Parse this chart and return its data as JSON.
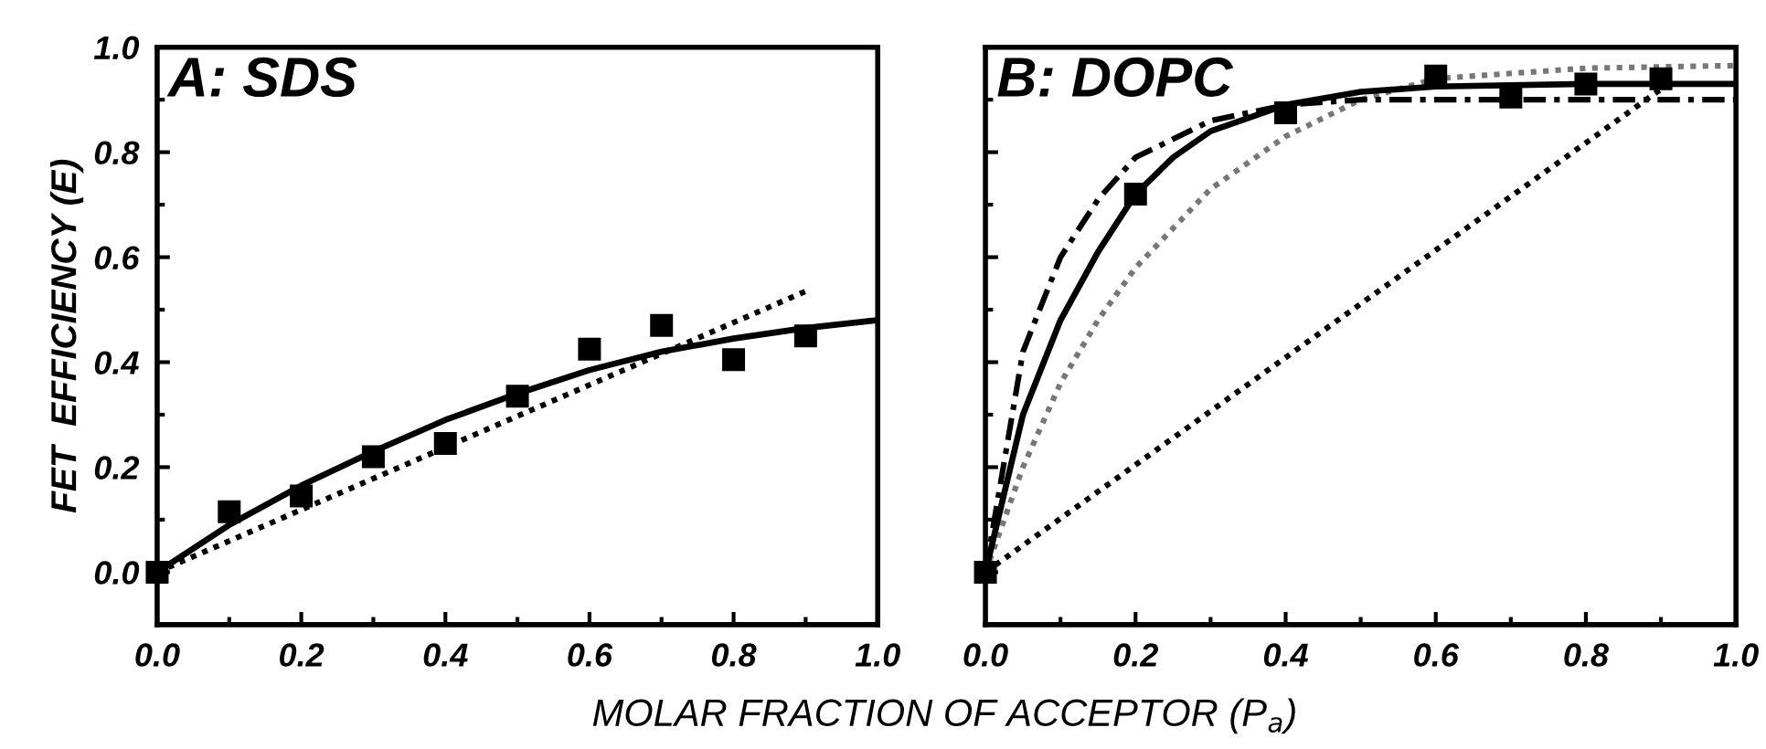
{
  "chart_data": [
    {
      "type": "scatter",
      "title": "A: SDS",
      "xlabel": "MOLAR FRACTION OF ACCEPTOR (P$_{a}$)",
      "ylabel": "FET  EFFICIENCY (E)",
      "xlim": [
        0,
        1
      ],
      "ylim": [
        -0.1,
        1
      ],
      "xticks": [
        {
          "value": 0,
          "label": "0.0"
        },
        {
          "value": 0.2,
          "label": "0.2"
        },
        {
          "value": 0.4,
          "label": "0.4"
        },
        {
          "value": 0.6,
          "label": "0.6"
        },
        {
          "value": 0.8,
          "label": "0.8"
        },
        {
          "value": 1,
          "label": "1.0"
        }
      ],
      "yticks": [
        {
          "value": 0,
          "label": "0.0"
        },
        {
          "value": 0.2,
          "label": "0.2"
        },
        {
          "value": 0.4,
          "label": "0.4"
        },
        {
          "value": 0.6,
          "label": "0.6"
        },
        {
          "value": 0.8,
          "label": "0.8"
        },
        {
          "value": 1,
          "label": "1.0"
        }
      ],
      "grid": false,
      "legend": false,
      "series": [
        {
          "marker": "square",
          "color": "#000000",
          "x": [
            0,
            0.1,
            0.2,
            0.3,
            0.4,
            0.5,
            0.6,
            0.7,
            0.8,
            0.9
          ],
          "values": [
            0,
            0.115,
            0.145,
            0.22,
            0.245,
            0.335,
            0.425,
            0.47,
            0.405,
            0.45
          ]
        },
        {
          "type": "line",
          "line_style": "solid",
          "color": "#000000",
          "x": [
            0,
            0.1,
            0.2,
            0.3,
            0.4,
            0.5,
            0.6,
            0.7,
            0.8,
            0.9,
            1.0
          ],
          "values": [
            0,
            0.09,
            0.165,
            0.23,
            0.29,
            0.34,
            0.385,
            0.42,
            0.445,
            0.465,
            0.48
          ]
        },
        {
          "type": "line",
          "line_style": "dotted",
          "color": "#000000",
          "x": [
            0,
            0.9
          ],
          "values": [
            0,
            0.535
          ]
        }
      ]
    },
    {
      "type": "scatter",
      "title": "B: DOPC",
      "xlim": [
        0,
        1
      ],
      "ylim": [
        -0.1,
        1
      ],
      "tick_labels": "x",
      "xticks": [
        {
          "value": 0,
          "label": "0.0"
        },
        {
          "value": 0.2,
          "label": "0.2"
        },
        {
          "value": 0.4,
          "label": "0.4"
        },
        {
          "value": 0.6,
          "label": "0.6"
        },
        {
          "value": 0.8,
          "label": "0.8"
        },
        {
          "value": 1,
          "label": "1.0"
        }
      ],
      "yticks": [
        0,
        0.2,
        0.4,
        0.6,
        0.8,
        1
      ],
      "grid": false,
      "legend": false,
      "series": [
        {
          "type": "line",
          "line_style": "dotted",
          "color": "#777777",
          "x": [
            0,
            0.05,
            0.1,
            0.15,
            0.2,
            0.3,
            0.4,
            0.5,
            0.6,
            0.8,
            1.0
          ],
          "values": [
            0,
            0.2,
            0.36,
            0.48,
            0.58,
            0.73,
            0.83,
            0.9,
            0.94,
            0.96,
            0.965
          ]
        },
        {
          "type": "line",
          "line_style": "dashed",
          "color": "#000000",
          "x": [
            0,
            0.05,
            0.1,
            0.15,
            0.2,
            0.3,
            0.4,
            0.5,
            1.0
          ],
          "values": [
            0,
            0.42,
            0.6,
            0.71,
            0.79,
            0.86,
            0.89,
            0.9,
            0.9
          ]
        },
        {
          "type": "line",
          "line_style": "solid",
          "color": "#000000",
          "x": [
            0,
            0.05,
            0.1,
            0.15,
            0.2,
            0.25,
            0.3,
            0.4,
            0.5,
            0.6,
            0.8,
            1.0
          ],
          "values": [
            0,
            0.3,
            0.48,
            0.61,
            0.72,
            0.79,
            0.84,
            0.89,
            0.915,
            0.925,
            0.93,
            0.93
          ]
        },
        {
          "type": "line",
          "line_style": "dotted",
          "color": "#000000",
          "x": [
            0,
            0.9
          ],
          "values": [
            0,
            0.92
          ]
        },
        {
          "marker": "square",
          "color": "#000000",
          "x": [
            0,
            0.2,
            0.4,
            0.6,
            0.7,
            0.8,
            0.9
          ],
          "values": [
            0,
            0.72,
            0.875,
            0.945,
            0.905,
            0.93,
            0.94
          ]
        }
      ]
    }
  ]
}
